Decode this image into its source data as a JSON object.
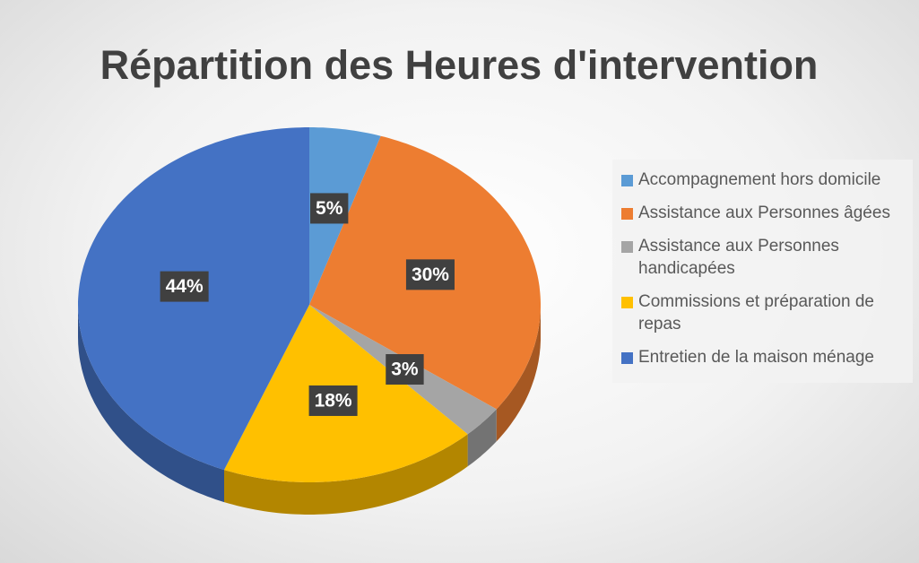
{
  "chart_data": {
    "type": "pie",
    "title": "Répartition des Heures d'intervention",
    "categories": [
      "Accompagnement hors domicile",
      "Assistance aux Personnes âgées",
      "Assistance aux Personnes handicapées",
      "Commissions et préparation de repas",
      "Entretien de la maison ménage"
    ],
    "values": [
      5,
      30,
      3,
      18,
      44
    ],
    "value_labels": [
      "5%",
      "30%",
      "3%",
      "18%",
      "44%"
    ],
    "colors": [
      "#5b9bd5",
      "#ed7d31",
      "#a5a5a5",
      "#ffc000",
      "#4472c4"
    ],
    "legend": "right"
  }
}
